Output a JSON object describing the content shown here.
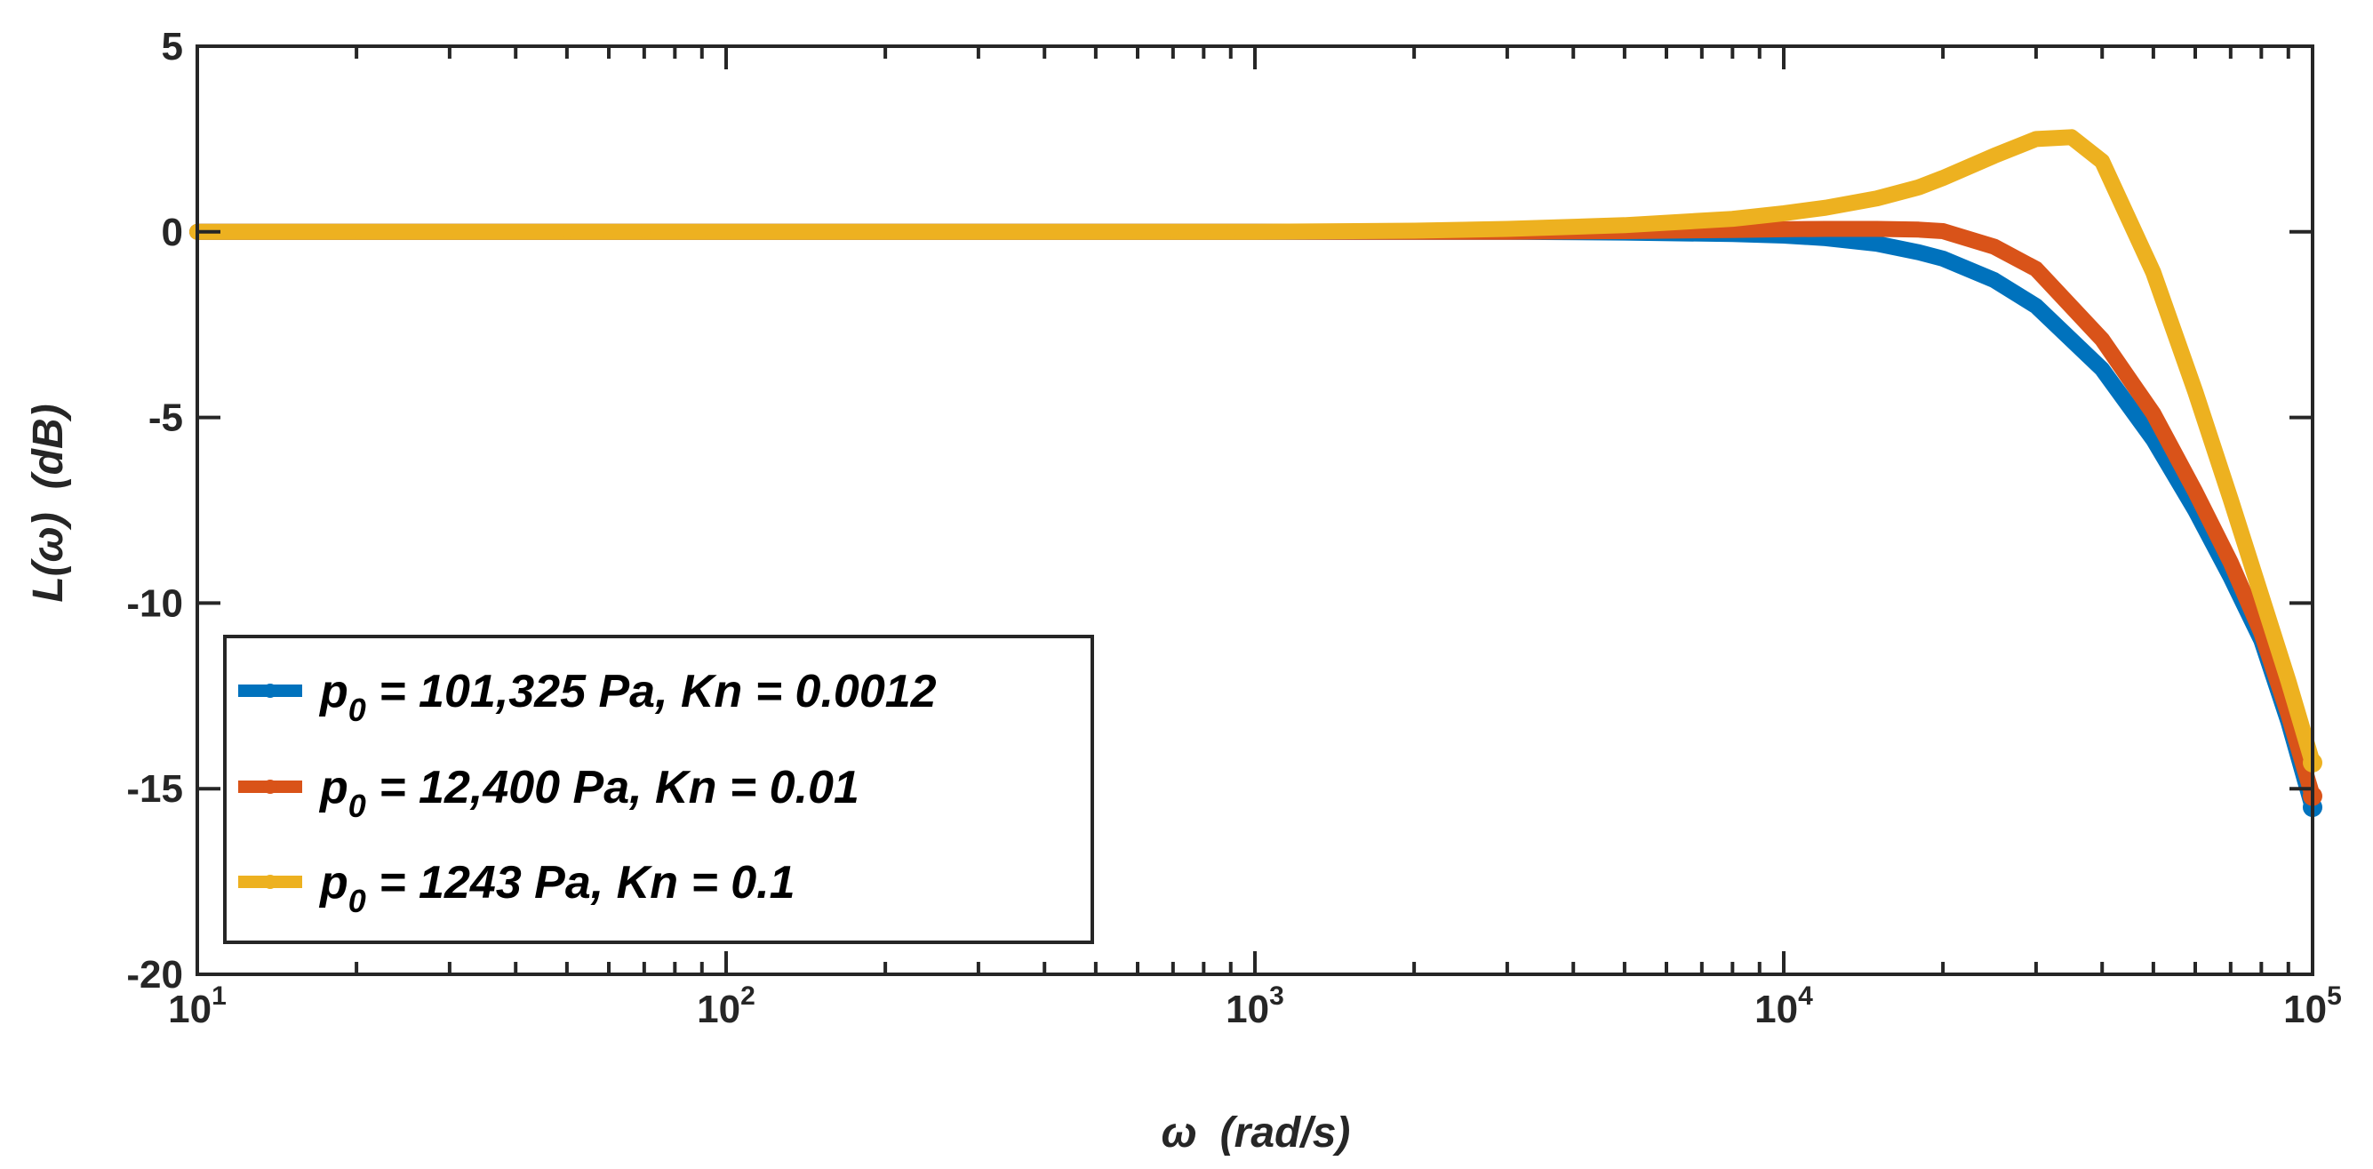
{
  "chart_data": {
    "type": "line",
    "xscale": "log",
    "xlim": [
      10,
      100000
    ],
    "ylim": [
      -20,
      5
    ],
    "xlabel": {
      "symbol": "ω",
      "unit": "(rad/s)"
    },
    "ylabel": {
      "text": "L(ω)",
      "unit": "(dB)"
    },
    "xticks": [
      {
        "value": 10,
        "base": "10",
        "exp": "1"
      },
      {
        "value": 100,
        "base": "10",
        "exp": "2"
      },
      {
        "value": 1000,
        "base": "10",
        "exp": "3"
      },
      {
        "value": 10000,
        "base": "10",
        "exp": "4"
      },
      {
        "value": 100000,
        "base": "10",
        "exp": "5"
      }
    ],
    "yticks": [
      5,
      0,
      -5,
      -10,
      -15,
      -20
    ],
    "legend_position": "lower-left",
    "series": [
      {
        "name": "p0 = 101,325 Pa, Kn = 0.0012",
        "label_symbol": "p",
        "label_sub": "0",
        "label_rest": " = 101,325 Pa, Kn = 0.0012",
        "color": "#0072BD",
        "x": [
          10,
          100,
          1000,
          3000,
          5000,
          8000,
          10000,
          12000,
          15000,
          18000,
          20000,
          25000,
          30000,
          40000,
          50000,
          60000,
          70000,
          80000,
          90000,
          100000
        ],
        "y": [
          0,
          0,
          0,
          0,
          -0.02,
          -0.06,
          -0.1,
          -0.17,
          -0.32,
          -0.55,
          -0.72,
          -1.3,
          -2.0,
          -3.7,
          -5.6,
          -7.5,
          -9.3,
          -11.0,
          -13.2,
          -15.5
        ]
      },
      {
        "name": "p0 = 12,400 Pa, Kn = 0.01",
        "label_symbol": "p",
        "label_sub": "0",
        "label_rest": " = 12,400 Pa, Kn = 0.01",
        "color": "#D95319",
        "x": [
          10,
          100,
          1000,
          3000,
          5000,
          8000,
          10000,
          12000,
          15000,
          18000,
          20000,
          25000,
          30000,
          40000,
          50000,
          60000,
          70000,
          80000,
          90000,
          100000
        ],
        "y": [
          0,
          0,
          0,
          0,
          0.02,
          0.05,
          0.07,
          0.08,
          0.08,
          0.06,
          0.02,
          -0.4,
          -1.0,
          -2.9,
          -4.9,
          -7.0,
          -8.9,
          -10.8,
          -13.0,
          -15.2
        ]
      },
      {
        "name": "p0 = 1243 Pa, Kn = 0.1",
        "label_symbol": "p",
        "label_sub": "0",
        "label_rest": " = 1243 Pa, Kn = 0.1",
        "color": "#EDB120",
        "x": [
          10,
          100,
          1000,
          2000,
          3000,
          5000,
          8000,
          10000,
          12000,
          15000,
          18000,
          20000,
          25000,
          30000,
          35000,
          40000,
          50000,
          60000,
          70000,
          80000,
          90000,
          100000
        ],
        "y": [
          0,
          0,
          0,
          0.03,
          0.08,
          0.18,
          0.35,
          0.5,
          0.65,
          0.9,
          1.2,
          1.45,
          2.05,
          2.5,
          2.55,
          1.9,
          -1.1,
          -4.3,
          -7.2,
          -9.8,
          -12.1,
          -14.3
        ]
      }
    ]
  }
}
